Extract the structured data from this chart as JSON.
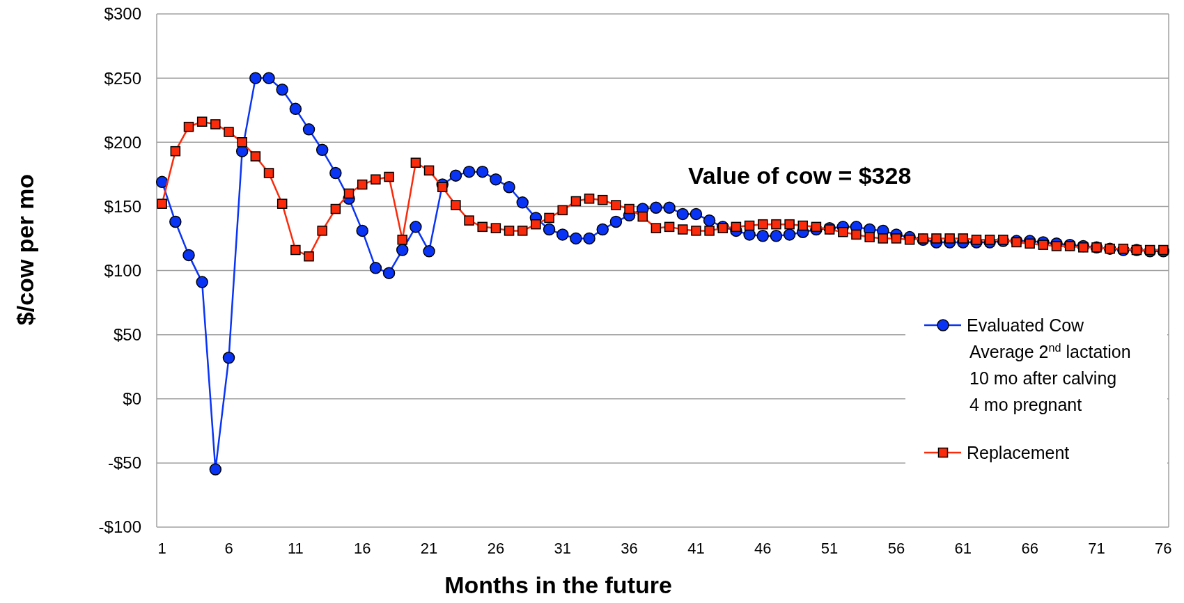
{
  "chart_data": {
    "type": "line",
    "xlabel": "Months in the future",
    "ylabel": "$/cow per mo",
    "x": [
      1,
      2,
      3,
      4,
      5,
      6,
      7,
      8,
      9,
      10,
      11,
      12,
      13,
      14,
      15,
      16,
      17,
      18,
      19,
      20,
      21,
      22,
      23,
      24,
      25,
      26,
      27,
      28,
      29,
      30,
      31,
      32,
      33,
      34,
      35,
      36,
      37,
      38,
      39,
      40,
      41,
      42,
      43,
      44,
      45,
      46,
      47,
      48,
      49,
      50,
      51,
      52,
      53,
      54,
      55,
      56,
      57,
      58,
      59,
      60,
      61,
      62,
      63,
      64,
      65,
      66,
      67,
      68,
      69,
      70,
      71,
      72,
      73,
      74,
      75,
      76
    ],
    "series": [
      {
        "name": "Evaluated Cow",
        "color": "#0a34f5",
        "marker": "circle",
        "values": [
          169,
          138,
          112,
          91,
          -55,
          32,
          193,
          250,
          250,
          241,
          226,
          210,
          194,
          176,
          156,
          131,
          102,
          98,
          116,
          134,
          115,
          167,
          174,
          177,
          177,
          171,
          165,
          153,
          141,
          132,
          128,
          125,
          125,
          132,
          138,
          143,
          148,
          149,
          149,
          144,
          144,
          139,
          134,
          131,
          128,
          127,
          127,
          128,
          130,
          132,
          133,
          134,
          134,
          132,
          131,
          128,
          126,
          124,
          122,
          122,
          122,
          122,
          122,
          123,
          123,
          123,
          122,
          121,
          120,
          119,
          118,
          117,
          116,
          116,
          115,
          115
        ]
      },
      {
        "name": "Replacement",
        "color": "#fa2a0a",
        "marker": "square",
        "values": [
          152,
          193,
          212,
          216,
          214,
          208,
          200,
          189,
          176,
          152,
          116,
          111,
          131,
          148,
          160,
          167,
          171,
          173,
          124,
          184,
          178,
          165,
          151,
          139,
          134,
          133,
          131,
          131,
          136,
          141,
          147,
          154,
          156,
          155,
          151,
          148,
          142,
          133,
          134,
          132,
          131,
          131,
          133,
          134,
          135,
          136,
          136,
          136,
          135,
          134,
          132,
          130,
          128,
          126,
          125,
          125,
          124,
          125,
          125,
          125,
          125,
          124,
          124,
          124,
          122,
          121,
          120,
          119,
          119,
          118,
          118,
          117,
          117,
          116,
          116,
          116
        ]
      }
    ],
    "xlim": [
      0.6,
      76.4
    ],
    "xticks": [
      1,
      6,
      11,
      16,
      21,
      26,
      31,
      36,
      41,
      46,
      51,
      56,
      61,
      66,
      71,
      76
    ],
    "ylim": [
      -100,
      300
    ],
    "yticks": [
      {
        "value": -100,
        "label": "-$100"
      },
      {
        "value": -50,
        "label": "-$50"
      },
      {
        "value": 0,
        "label": "$0"
      },
      {
        "value": 50,
        "label": "$50"
      },
      {
        "value": 100,
        "label": "$100"
      },
      {
        "value": 150,
        "label": "$150"
      },
      {
        "value": 200,
        "label": "$200"
      },
      {
        "value": 250,
        "label": "$250"
      },
      {
        "value": 300,
        "label": "$300"
      }
    ],
    "grid": "y",
    "legend": "right",
    "line_style": "solid",
    "annotations": [
      "Value of cow = $328",
      "Average 2$^{nd}$ lactation",
      "10 mo after calving",
      "4 mo pregnant"
    ]
  }
}
